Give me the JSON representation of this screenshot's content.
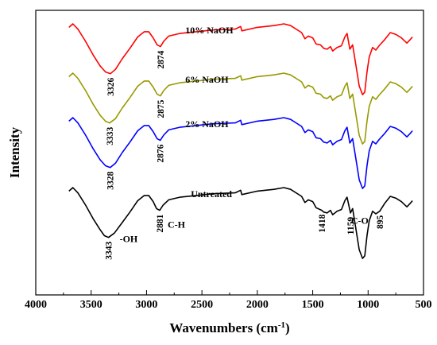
{
  "chart_data": {
    "type": "line",
    "xlabel": "Wavenumbers (cm",
    "xlabel_sup": "-1",
    "xlabel_close": ")",
    "ylabel": "Intensity",
    "xlim": [
      4000,
      500
    ],
    "x_ticks": [
      4000,
      3500,
      3000,
      2500,
      2000,
      1500,
      1000,
      500
    ],
    "y_axis_ticks_labeled": false,
    "grid": false,
    "legend": "none (series labelled inline)",
    "series": [
      {
        "name": "10% NaOH",
        "color": "#ff0000",
        "points": [
          [
            3700,
            0.04
          ],
          [
            3665,
            0.0
          ],
          [
            3620,
            0.06
          ],
          [
            3550,
            0.2
          ],
          [
            3480,
            0.36
          ],
          [
            3420,
            0.48
          ],
          [
            3370,
            0.55
          ],
          [
            3326,
            0.57
          ],
          [
            3280,
            0.52
          ],
          [
            3220,
            0.4
          ],
          [
            3150,
            0.28
          ],
          [
            3080,
            0.15
          ],
          [
            3020,
            0.09
          ],
          [
            2980,
            0.09
          ],
          [
            2940,
            0.16
          ],
          [
            2905,
            0.24
          ],
          [
            2874,
            0.26
          ],
          [
            2845,
            0.2
          ],
          [
            2800,
            0.14
          ],
          [
            2700,
            0.11
          ],
          [
            2550,
            0.09
          ],
          [
            2400,
            0.07
          ],
          [
            2200,
            0.06
          ],
          [
            2150,
            0.03
          ],
          [
            2140,
            0.08
          ],
          [
            2000,
            0.04
          ],
          [
            1850,
            0.02
          ],
          [
            1760,
            0.0
          ],
          [
            1700,
            0.02
          ],
          [
            1600,
            0.1
          ],
          [
            1570,
            0.17
          ],
          [
            1540,
            0.14
          ],
          [
            1500,
            0.16
          ],
          [
            1470,
            0.23
          ],
          [
            1430,
            0.24
          ],
          [
            1400,
            0.28
          ],
          [
            1370,
            0.29
          ],
          [
            1340,
            0.26
          ],
          [
            1320,
            0.31
          ],
          [
            1280,
            0.27
          ],
          [
            1240,
            0.25
          ],
          [
            1210,
            0.15
          ],
          [
            1190,
            0.11
          ],
          [
            1165,
            0.29
          ],
          [
            1140,
            0.24
          ],
          [
            1110,
            0.47
          ],
          [
            1080,
            0.71
          ],
          [
            1050,
            0.81
          ],
          [
            1030,
            0.78
          ],
          [
            1010,
            0.55
          ],
          [
            990,
            0.38
          ],
          [
            960,
            0.27
          ],
          [
            930,
            0.3
          ],
          [
            900,
            0.25
          ],
          [
            850,
            0.18
          ],
          [
            800,
            0.1
          ],
          [
            750,
            0.12
          ],
          [
            700,
            0.16
          ],
          [
            650,
            0.22
          ],
          [
            620,
            0.18
          ],
          [
            600,
            0.15
          ]
        ]
      },
      {
        "name": "6% NaOH",
        "color": "#999900",
        "points": [
          [
            3700,
            0.04
          ],
          [
            3665,
            0.0
          ],
          [
            3620,
            0.06
          ],
          [
            3550,
            0.2
          ],
          [
            3480,
            0.36
          ],
          [
            3420,
            0.48
          ],
          [
            3370,
            0.55
          ],
          [
            3333,
            0.57
          ],
          [
            3280,
            0.52
          ],
          [
            3220,
            0.4
          ],
          [
            3150,
            0.28
          ],
          [
            3080,
            0.15
          ],
          [
            3020,
            0.09
          ],
          [
            2980,
            0.09
          ],
          [
            2940,
            0.16
          ],
          [
            2905,
            0.24
          ],
          [
            2875,
            0.26
          ],
          [
            2845,
            0.2
          ],
          [
            2800,
            0.14
          ],
          [
            2700,
            0.11
          ],
          [
            2550,
            0.09
          ],
          [
            2400,
            0.07
          ],
          [
            2200,
            0.06
          ],
          [
            2150,
            0.03
          ],
          [
            2140,
            0.08
          ],
          [
            2000,
            0.04
          ],
          [
            1850,
            0.02
          ],
          [
            1760,
            0.0
          ],
          [
            1700,
            0.02
          ],
          [
            1600,
            0.1
          ],
          [
            1570,
            0.17
          ],
          [
            1540,
            0.14
          ],
          [
            1500,
            0.16
          ],
          [
            1470,
            0.23
          ],
          [
            1430,
            0.24
          ],
          [
            1400,
            0.28
          ],
          [
            1370,
            0.29
          ],
          [
            1340,
            0.26
          ],
          [
            1320,
            0.31
          ],
          [
            1280,
            0.27
          ],
          [
            1240,
            0.25
          ],
          [
            1210,
            0.15
          ],
          [
            1190,
            0.11
          ],
          [
            1165,
            0.29
          ],
          [
            1140,
            0.24
          ],
          [
            1110,
            0.47
          ],
          [
            1080,
            0.71
          ],
          [
            1050,
            0.81
          ],
          [
            1030,
            0.78
          ],
          [
            1010,
            0.55
          ],
          [
            990,
            0.38
          ],
          [
            960,
            0.27
          ],
          [
            930,
            0.3
          ],
          [
            900,
            0.25
          ],
          [
            850,
            0.18
          ],
          [
            800,
            0.1
          ],
          [
            750,
            0.12
          ],
          [
            700,
            0.16
          ],
          [
            650,
            0.22
          ],
          [
            620,
            0.18
          ],
          [
            600,
            0.15
          ]
        ]
      },
      {
        "name": "2% NaOH",
        "color": "#0000ff",
        "points": [
          [
            3700,
            0.04
          ],
          [
            3665,
            0.0
          ],
          [
            3620,
            0.06
          ],
          [
            3550,
            0.2
          ],
          [
            3480,
            0.36
          ],
          [
            3420,
            0.48
          ],
          [
            3370,
            0.55
          ],
          [
            3328,
            0.57
          ],
          [
            3280,
            0.52
          ],
          [
            3220,
            0.4
          ],
          [
            3150,
            0.28
          ],
          [
            3080,
            0.15
          ],
          [
            3020,
            0.09
          ],
          [
            2980,
            0.09
          ],
          [
            2940,
            0.16
          ],
          [
            2905,
            0.24
          ],
          [
            2876,
            0.26
          ],
          [
            2845,
            0.2
          ],
          [
            2800,
            0.14
          ],
          [
            2700,
            0.11
          ],
          [
            2550,
            0.09
          ],
          [
            2400,
            0.07
          ],
          [
            2200,
            0.06
          ],
          [
            2150,
            0.03
          ],
          [
            2140,
            0.08
          ],
          [
            2000,
            0.04
          ],
          [
            1850,
            0.02
          ],
          [
            1760,
            0.0
          ],
          [
            1700,
            0.02
          ],
          [
            1600,
            0.1
          ],
          [
            1570,
            0.17
          ],
          [
            1540,
            0.14
          ],
          [
            1500,
            0.16
          ],
          [
            1470,
            0.23
          ],
          [
            1430,
            0.24
          ],
          [
            1400,
            0.28
          ],
          [
            1370,
            0.29
          ],
          [
            1340,
            0.26
          ],
          [
            1320,
            0.31
          ],
          [
            1280,
            0.27
          ],
          [
            1240,
            0.25
          ],
          [
            1210,
            0.15
          ],
          [
            1190,
            0.11
          ],
          [
            1165,
            0.29
          ],
          [
            1140,
            0.24
          ],
          [
            1110,
            0.47
          ],
          [
            1080,
            0.71
          ],
          [
            1050,
            0.81
          ],
          [
            1030,
            0.78
          ],
          [
            1010,
            0.55
          ],
          [
            990,
            0.38
          ],
          [
            960,
            0.27
          ],
          [
            930,
            0.3
          ],
          [
            900,
            0.25
          ],
          [
            850,
            0.18
          ],
          [
            800,
            0.1
          ],
          [
            750,
            0.12
          ],
          [
            700,
            0.16
          ],
          [
            650,
            0.22
          ],
          [
            620,
            0.18
          ],
          [
            600,
            0.15
          ]
        ]
      },
      {
        "name": "Untreated",
        "color": "#000000",
        "points": [
          [
            3700,
            0.04
          ],
          [
            3665,
            0.0
          ],
          [
            3620,
            0.06
          ],
          [
            3550,
            0.2
          ],
          [
            3480,
            0.36
          ],
          [
            3420,
            0.48
          ],
          [
            3380,
            0.55
          ],
          [
            3343,
            0.57
          ],
          [
            3290,
            0.52
          ],
          [
            3220,
            0.4
          ],
          [
            3150,
            0.28
          ],
          [
            3080,
            0.15
          ],
          [
            3020,
            0.09
          ],
          [
            2980,
            0.09
          ],
          [
            2940,
            0.16
          ],
          [
            2910,
            0.24
          ],
          [
            2881,
            0.26
          ],
          [
            2850,
            0.2
          ],
          [
            2800,
            0.14
          ],
          [
            2700,
            0.11
          ],
          [
            2550,
            0.09
          ],
          [
            2400,
            0.07
          ],
          [
            2200,
            0.06
          ],
          [
            2150,
            0.03
          ],
          [
            2140,
            0.08
          ],
          [
            2000,
            0.04
          ],
          [
            1850,
            0.02
          ],
          [
            1760,
            0.0
          ],
          [
            1700,
            0.02
          ],
          [
            1600,
            0.1
          ],
          [
            1570,
            0.17
          ],
          [
            1540,
            0.14
          ],
          [
            1500,
            0.16
          ],
          [
            1470,
            0.23
          ],
          [
            1418,
            0.26
          ],
          [
            1400,
            0.28
          ],
          [
            1370,
            0.29
          ],
          [
            1340,
            0.26
          ],
          [
            1320,
            0.31
          ],
          [
            1280,
            0.27
          ],
          [
            1240,
            0.25
          ],
          [
            1210,
            0.15
          ],
          [
            1190,
            0.11
          ],
          [
            1159,
            0.29
          ],
          [
            1140,
            0.24
          ],
          [
            1110,
            0.47
          ],
          [
            1080,
            0.71
          ],
          [
            1050,
            0.81
          ],
          [
            1030,
            0.78
          ],
          [
            1010,
            0.55
          ],
          [
            990,
            0.38
          ],
          [
            960,
            0.27
          ],
          [
            930,
            0.3
          ],
          [
            895,
            0.27
          ],
          [
            850,
            0.18
          ],
          [
            800,
            0.1
          ],
          [
            750,
            0.12
          ],
          [
            700,
            0.16
          ],
          [
            650,
            0.22
          ],
          [
            620,
            0.18
          ],
          [
            600,
            0.15
          ]
        ]
      }
    ],
    "series_labels": [
      {
        "series": "10% NaOH",
        "text": "10% NaOH",
        "x": 2650
      },
      {
        "series": "6% NaOH",
        "text": "6% NaOH",
        "x": 2650
      },
      {
        "series": "2% NaOH",
        "text": "2% NaOH",
        "x": 2650
      },
      {
        "series": "Untreated",
        "text": "Untreated",
        "x": 2600
      }
    ],
    "peak_labels": [
      {
        "series": "10% NaOH",
        "text": "3326",
        "x": 3326
      },
      {
        "series": "10% NaOH",
        "text": "2874",
        "x": 2874
      },
      {
        "series": "6% NaOH",
        "text": "3333",
        "x": 3333
      },
      {
        "series": "6% NaOH",
        "text": "2875",
        "x": 2875
      },
      {
        "series": "2% NaOH",
        "text": "3328",
        "x": 3328
      },
      {
        "series": "2% NaOH",
        "text": "2876",
        "x": 2876
      },
      {
        "series": "Untreated",
        "text": "3343",
        "x": 3343
      },
      {
        "series": "Untreated",
        "text": "2881",
        "x": 2881
      },
      {
        "series": "Untreated",
        "text": "1418",
        "x": 1418
      },
      {
        "series": "Untreated",
        "text": "1159",
        "x": 1159
      },
      {
        "series": "Untreated",
        "text": "895",
        "x": 895
      }
    ],
    "annotations": [
      {
        "text": "-OH",
        "x": 3343
      },
      {
        "text": "C-H",
        "x": 2881
      },
      {
        "text": "C-O",
        "x": 1240
      }
    ]
  }
}
